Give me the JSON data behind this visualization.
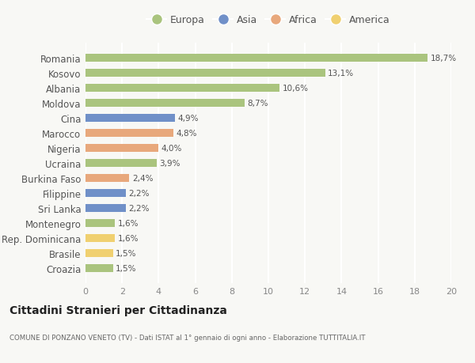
{
  "categories": [
    "Romania",
    "Kosovo",
    "Albania",
    "Moldova",
    "Cina",
    "Marocco",
    "Nigeria",
    "Ucraina",
    "Burkina Faso",
    "Filippine",
    "Sri Lanka",
    "Montenegro",
    "Rep. Dominicana",
    "Brasile",
    "Croazia"
  ],
  "values": [
    18.7,
    13.1,
    10.6,
    8.7,
    4.9,
    4.8,
    4.0,
    3.9,
    2.4,
    2.2,
    2.2,
    1.6,
    1.6,
    1.5,
    1.5
  ],
  "continents": [
    "Europa",
    "Europa",
    "Europa",
    "Europa",
    "Asia",
    "Africa",
    "Africa",
    "Europa",
    "Africa",
    "Asia",
    "Asia",
    "Europa",
    "America",
    "America",
    "Europa"
  ],
  "colors": {
    "Europa": "#aac47e",
    "Asia": "#7090c8",
    "Africa": "#e8a87c",
    "America": "#f0d070"
  },
  "legend_order": [
    "Europa",
    "Asia",
    "Africa",
    "America"
  ],
  "xlim": [
    0,
    20
  ],
  "xticks": [
    0,
    2,
    4,
    6,
    8,
    10,
    12,
    14,
    16,
    18,
    20
  ],
  "title": "Cittadini Stranieri per Cittadinanza",
  "subtitle": "COMUNE DI PONZANO VENETO (TV) - Dati ISTAT al 1° gennaio di ogni anno - Elaborazione TUTTITALIA.IT",
  "background_color": "#f8f8f5",
  "bar_height": 0.55
}
